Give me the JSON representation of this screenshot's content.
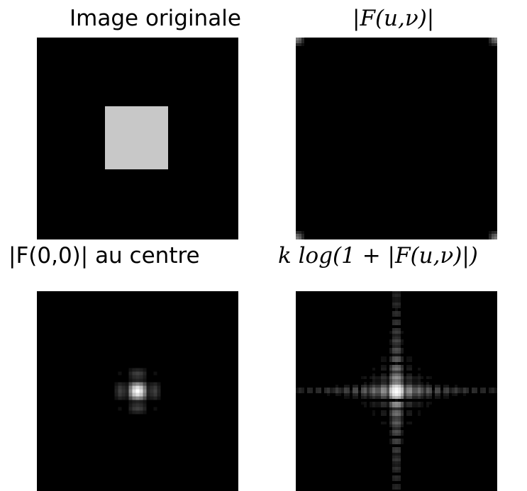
{
  "figure": {
    "panels": [
      {
        "title": "Image originale",
        "content": "gray square centered on black background"
      },
      {
        "title": "|F(u,ν)|",
        "content": "magnitude spectrum, energy in corners"
      },
      {
        "title": "|F(0,0)| au centre",
        "content": "centered spectrum, single bright point"
      },
      {
        "title": "k log(1 + |F(u,ν)|)",
        "content": "log-scaled centered spectrum, sinc grid cross pattern"
      }
    ]
  },
  "colors": {
    "background": "#000000",
    "square": "#c8c8c8",
    "figure_bg": "#ffffff"
  }
}
